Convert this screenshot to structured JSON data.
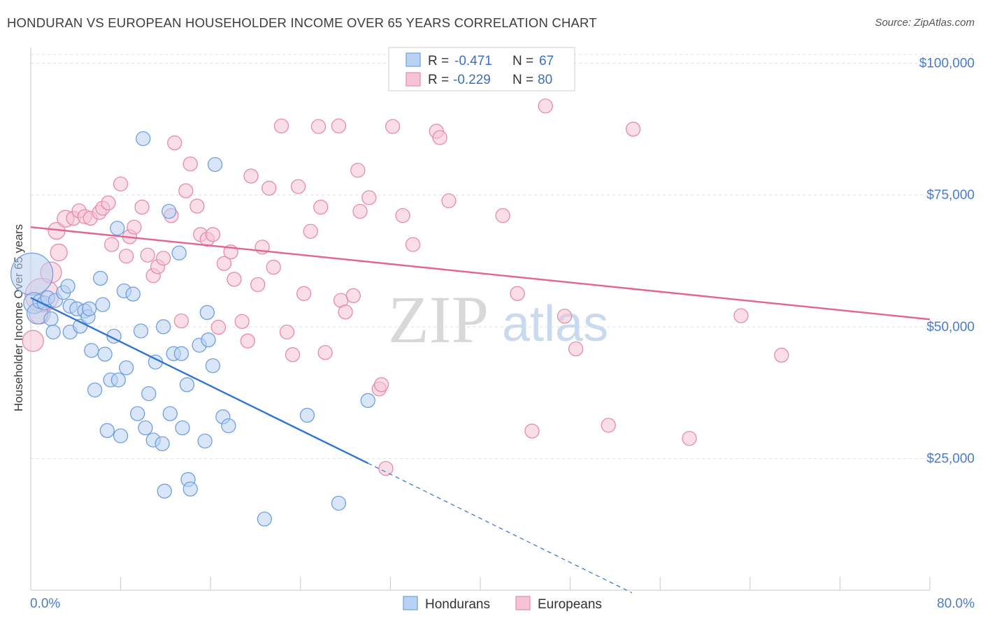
{
  "title": "HONDURAN VS EUROPEAN HOUSEHOLDER INCOME OVER 65 YEARS CORRELATION CHART",
  "source": "Source: ZipAtlas.com",
  "watermark": {
    "zip": "ZIP",
    "atlas": "atlas"
  },
  "legend": {
    "r_label": "R =",
    "n_label": "N =",
    "rows": [
      {
        "r": "-0.471",
        "n": "67"
      },
      {
        "r": "-0.229",
        "n": "80"
      }
    ]
  },
  "bottom_legend": [
    "Hondurans",
    "Europeans"
  ],
  "chart_data": {
    "type": "scatter",
    "title": "HONDURAN VS EUROPEAN HOUSEHOLDER INCOME OVER 65 YEARS CORRELATION CHART",
    "xlabel": "",
    "ylabel": "Householder Income Over 65 years",
    "xlim": [
      0,
      80
    ],
    "ylim": [
      0,
      103000
    ],
    "x_tick_labels": {
      "min": "0.0%",
      "max": "80.0%"
    },
    "y_ticks": [
      {
        "value": 25000,
        "label": "$25,000"
      },
      {
        "value": 50000,
        "label": "$50,000"
      },
      {
        "value": 75000,
        "label": "$75,000"
      },
      {
        "value": 100000,
        "label": "$100,000"
      }
    ],
    "grid": true,
    "legend_position": "top-center",
    "series": [
      {
        "name": "Hondurans",
        "color": "#6f9fe0",
        "fill": "#b9d2f3",
        "trend": {
          "x0": 0,
          "y0": 55500,
          "x1": 30,
          "y1": 24100,
          "dash_to_x": 53.5
        },
        "points": [
          [
            0.1,
            60000,
            30
          ],
          [
            0.3,
            54500,
            15
          ],
          [
            0.6,
            52500,
            15
          ],
          [
            0.8,
            54800,
            10
          ],
          [
            1.2,
            54500,
            10
          ],
          [
            1.5,
            55500,
            10
          ],
          [
            1.8,
            51500,
            10
          ],
          [
            2.0,
            49000,
            10
          ],
          [
            2.2,
            55000,
            10
          ],
          [
            2.9,
            56500,
            10
          ],
          [
            3.3,
            57700,
            10
          ],
          [
            3.5,
            49000,
            10
          ],
          [
            3.5,
            53900,
            10
          ],
          [
            4.1,
            53400,
            10
          ],
          [
            4.4,
            50100,
            10
          ],
          [
            4.8,
            53000,
            10
          ],
          [
            5.1,
            51900,
            10
          ],
          [
            5.2,
            53400,
            10
          ],
          [
            5.4,
            45500,
            10
          ],
          [
            5.7,
            38000,
            10
          ],
          [
            6.2,
            59200,
            10
          ],
          [
            6.4,
            54200,
            10
          ],
          [
            6.6,
            44800,
            10
          ],
          [
            6.8,
            30300,
            10
          ],
          [
            7.1,
            39900,
            10
          ],
          [
            7.4,
            48200,
            10
          ],
          [
            7.7,
            68700,
            10
          ],
          [
            7.8,
            39900,
            10
          ],
          [
            8.0,
            29300,
            10
          ],
          [
            8.3,
            56800,
            10
          ],
          [
            8.5,
            42200,
            10
          ],
          [
            9.1,
            56200,
            10
          ],
          [
            9.5,
            33500,
            10
          ],
          [
            9.8,
            49200,
            10
          ],
          [
            10.0,
            85700,
            10
          ],
          [
            10.2,
            30800,
            10
          ],
          [
            10.5,
            37300,
            10
          ],
          [
            10.9,
            28500,
            10
          ],
          [
            11.1,
            43300,
            10
          ],
          [
            11.7,
            27800,
            10
          ],
          [
            11.8,
            50000,
            10
          ],
          [
            11.9,
            18800,
            10
          ],
          [
            12.3,
            71900,
            10
          ],
          [
            12.4,
            33500,
            10
          ],
          [
            12.7,
            44900,
            10
          ],
          [
            13.2,
            64000,
            10
          ],
          [
            13.4,
            44900,
            10
          ],
          [
            13.5,
            30800,
            10
          ],
          [
            13.9,
            39000,
            10
          ],
          [
            14.0,
            21000,
            10
          ],
          [
            14.2,
            19200,
            10
          ],
          [
            15.0,
            46500,
            10
          ],
          [
            15.5,
            28300,
            10
          ],
          [
            15.7,
            52700,
            10
          ],
          [
            15.8,
            47500,
            10
          ],
          [
            16.2,
            42600,
            10
          ],
          [
            16.4,
            80800,
            10
          ],
          [
            17.1,
            32900,
            10
          ],
          [
            17.6,
            31200,
            10
          ],
          [
            20.8,
            13500,
            10
          ],
          [
            24.6,
            33200,
            10
          ],
          [
            27.4,
            16500,
            10
          ],
          [
            30.0,
            36000,
            10
          ]
        ]
      },
      {
        "name": "Europeans",
        "color": "#e88aa8",
        "fill": "#f6c3d4",
        "trend": {
          "x0": 0,
          "y0": 68900,
          "x1": 80,
          "y1": 51400
        },
        "points": [
          [
            0.2,
            47300,
            15
          ],
          [
            0.8,
            52500,
            15
          ],
          [
            1.0,
            56000,
            24
          ],
          [
            1.8,
            60300,
            15
          ],
          [
            2.3,
            68200,
            12
          ],
          [
            2.5,
            64100,
            12
          ],
          [
            3.1,
            70500,
            12
          ],
          [
            3.8,
            70600,
            10
          ],
          [
            4.3,
            72000,
            10
          ],
          [
            4.8,
            70900,
            10
          ],
          [
            5.3,
            70600,
            10
          ],
          [
            6.1,
            71700,
            10
          ],
          [
            6.4,
            72500,
            10
          ],
          [
            6.9,
            73500,
            10
          ],
          [
            7.2,
            65600,
            10
          ],
          [
            8.0,
            77100,
            10
          ],
          [
            8.5,
            63400,
            10
          ],
          [
            8.8,
            67100,
            10
          ],
          [
            9.2,
            68900,
            10
          ],
          [
            9.9,
            72700,
            10
          ],
          [
            10.4,
            63600,
            10
          ],
          [
            10.9,
            59700,
            10
          ],
          [
            11.3,
            61400,
            10
          ],
          [
            11.8,
            63000,
            10
          ],
          [
            12.5,
            71100,
            10
          ],
          [
            12.8,
            84900,
            10
          ],
          [
            13.4,
            51100,
            10
          ],
          [
            13.8,
            75800,
            10
          ],
          [
            14.2,
            80900,
            10
          ],
          [
            14.8,
            72900,
            10
          ],
          [
            15.1,
            67500,
            10
          ],
          [
            15.7,
            66600,
            10
          ],
          [
            16.2,
            67500,
            10
          ],
          [
            16.7,
            49900,
            10
          ],
          [
            17.2,
            62000,
            10
          ],
          [
            17.8,
            64200,
            10
          ],
          [
            18.1,
            59000,
            10
          ],
          [
            18.8,
            51000,
            10
          ],
          [
            19.3,
            47300,
            10
          ],
          [
            19.6,
            78600,
            10
          ],
          [
            20.2,
            58000,
            10
          ],
          [
            20.6,
            65100,
            10
          ],
          [
            21.2,
            76300,
            10
          ],
          [
            21.6,
            61300,
            10
          ],
          [
            22.3,
            88100,
            10
          ],
          [
            22.8,
            49000,
            10
          ],
          [
            23.3,
            44700,
            10
          ],
          [
            23.8,
            76600,
            10
          ],
          [
            24.3,
            56300,
            10
          ],
          [
            24.9,
            68100,
            10
          ],
          [
            25.6,
            88000,
            10
          ],
          [
            25.8,
            72700,
            10
          ],
          [
            26.2,
            45100,
            10
          ],
          [
            27.4,
            88100,
            10
          ],
          [
            27.6,
            55000,
            10
          ],
          [
            28.0,
            52800,
            10
          ],
          [
            28.7,
            55900,
            10
          ],
          [
            29.1,
            79700,
            10
          ],
          [
            29.3,
            71900,
            10
          ],
          [
            30.1,
            74500,
            10
          ],
          [
            31.0,
            38200,
            10
          ],
          [
            31.2,
            39000,
            10
          ],
          [
            31.6,
            23100,
            10
          ],
          [
            32.2,
            88000,
            10
          ],
          [
            33.1,
            71100,
            10
          ],
          [
            34.0,
            65600,
            10
          ],
          [
            36.1,
            87100,
            10
          ],
          [
            36.4,
            85900,
            10
          ],
          [
            37.2,
            73900,
            10
          ],
          [
            42.0,
            71100,
            10
          ],
          [
            43.3,
            56300,
            10
          ],
          [
            44.6,
            30200,
            10
          ],
          [
            45.8,
            91900,
            10
          ],
          [
            47.5,
            52000,
            10
          ],
          [
            48.5,
            45800,
            10
          ],
          [
            51.4,
            31300,
            10
          ],
          [
            53.6,
            87500,
            10
          ],
          [
            58.6,
            28800,
            10
          ],
          [
            63.2,
            52100,
            10
          ],
          [
            66.8,
            44600,
            10
          ]
        ]
      }
    ]
  }
}
